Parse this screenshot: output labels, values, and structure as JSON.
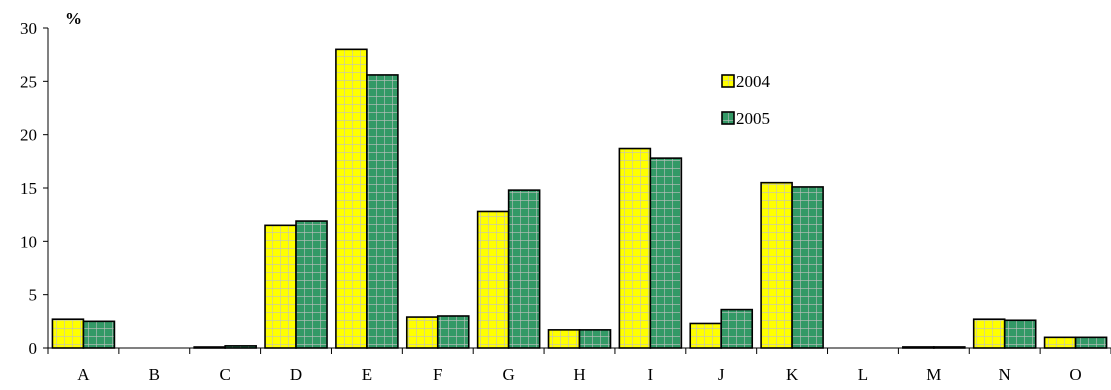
{
  "chart_data": {
    "type": "bar",
    "title": "",
    "ylabel": "%",
    "xlabel": "",
    "ylim": [
      0,
      30
    ],
    "yticks": [
      0,
      5,
      10,
      15,
      20,
      25,
      30
    ],
    "grid": false,
    "legend_position": "top-right",
    "categories": [
      "A",
      "B",
      "C",
      "D",
      "E",
      "F",
      "G",
      "H",
      "I",
      "J",
      "K",
      "L",
      "M",
      "N",
      "O"
    ],
    "series": [
      {
        "name": "2004",
        "color": "#ffff00",
        "grid_color": "#c0c0c0",
        "values": [
          2.7,
          0,
          0.05,
          11.5,
          28.0,
          2.9,
          12.8,
          1.7,
          18.7,
          2.3,
          15.5,
          0,
          0.1,
          2.7,
          1.0
        ]
      },
      {
        "name": "2005",
        "color": "#339966",
        "grid_color": "#c0c0c0",
        "values": [
          2.5,
          0,
          0.2,
          11.9,
          25.6,
          3.0,
          14.8,
          1.7,
          17.8,
          3.6,
          15.1,
          0,
          0.1,
          2.6,
          1.0
        ]
      }
    ]
  }
}
